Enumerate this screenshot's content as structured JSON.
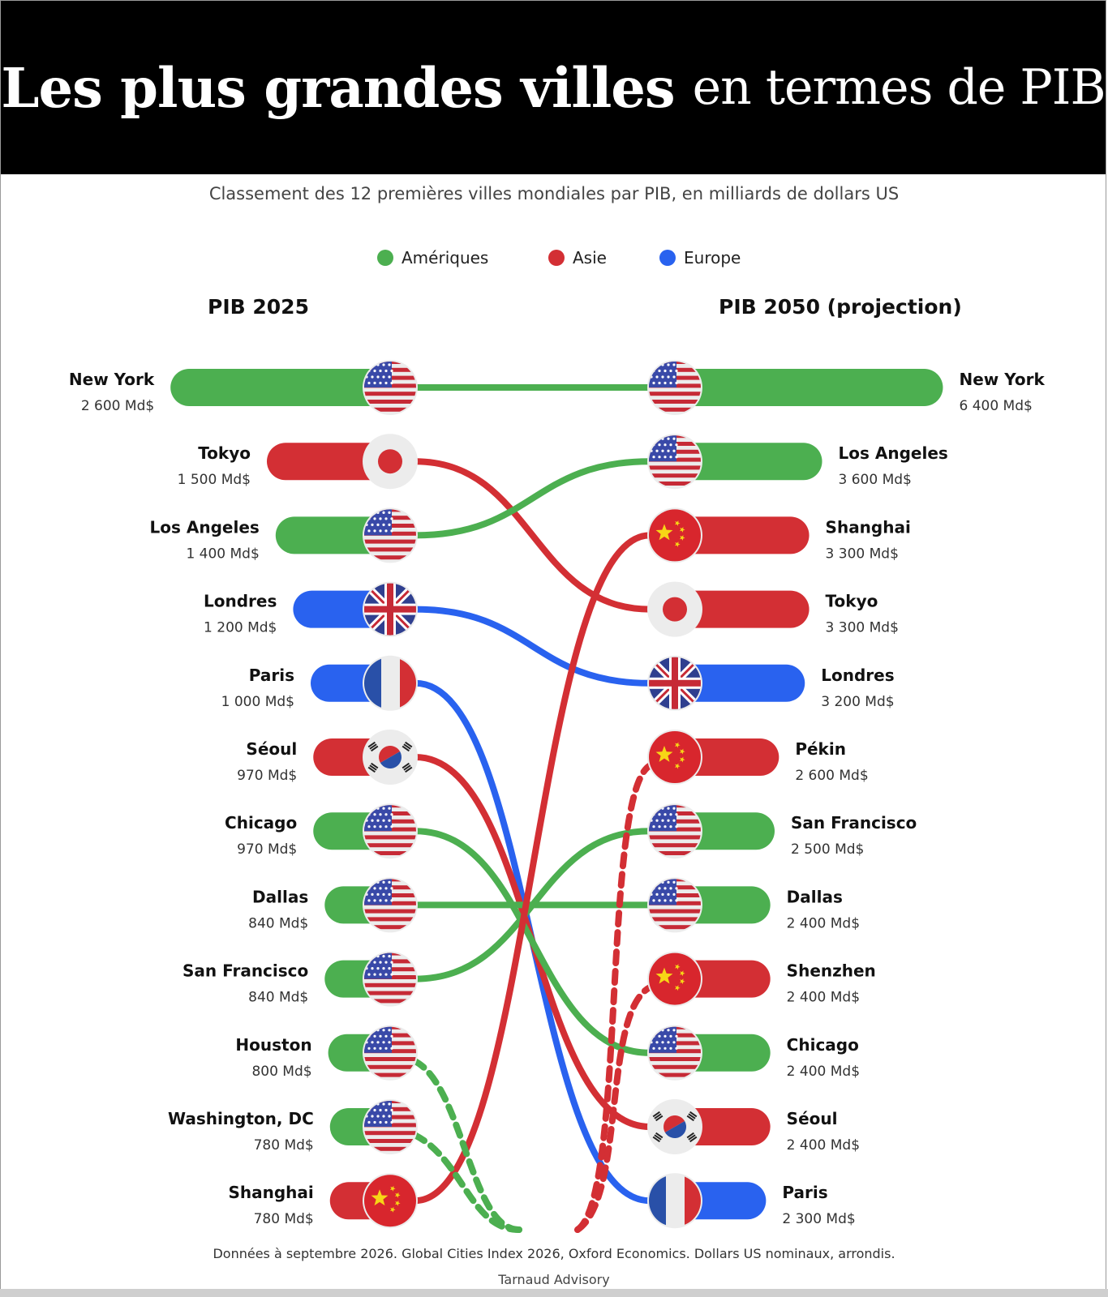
{
  "title": {
    "bold": "Les plus grandes villes",
    "regular": "en termes de PIB"
  },
  "subtitle": "Classement des 12 premières villes mondiales par PIB, en milliards de dollars US",
  "legend": [
    {
      "label": "Amériques",
      "color": "#4caf50"
    },
    {
      "label": "Asie",
      "color": "#d32f34"
    },
    {
      "label": "Europe",
      "color": "#2962ef"
    }
  ],
  "columns": {
    "left": "PIB 2025",
    "right": "PIB 2050 (projection)"
  },
  "footnote": "Données à septembre 2026. Global Cities Index 2026, Oxford Economics. Dollars US nominaux, arrondis.",
  "brand": "Tarnaud Advisory",
  "chart_data": {
    "type": "slope-bar",
    "unit": "Md$",
    "region_colors": {
      "Amériques": "#4caf50",
      "Asie": "#d32f34",
      "Europe": "#2962ef"
    },
    "left_series": "PIB 2025",
    "right_series": "PIB 2050 (projection)",
    "left": [
      {
        "rank": 1,
        "city": "New York",
        "value": 2600,
        "value_label": "2 600 Md$",
        "region": "Amériques",
        "flag": "us-flag"
      },
      {
        "rank": 2,
        "city": "Tokyo",
        "value": 1500,
        "value_label": "1 500 Md$",
        "region": "Asie",
        "flag": "japan-flag"
      },
      {
        "rank": 3,
        "city": "Los Angeles",
        "value": 1400,
        "value_label": "1 400 Md$",
        "region": "Amériques",
        "flag": "us-flag"
      },
      {
        "rank": 4,
        "city": "Londres",
        "value": 1200,
        "value_label": "1 200 Md$",
        "region": "Europe",
        "flag": "uk-flag"
      },
      {
        "rank": 5,
        "city": "Paris",
        "value": 1000,
        "value_label": "1 000 Md$",
        "region": "Europe",
        "flag": "france-flag"
      },
      {
        "rank": 6,
        "city": "Séoul",
        "value": 970,
        "value_label": "970 Md$",
        "region": "Asie",
        "flag": "korea-flag"
      },
      {
        "rank": 7,
        "city": "Chicago",
        "value": 970,
        "value_label": "970 Md$",
        "region": "Amériques",
        "flag": "us-flag"
      },
      {
        "rank": 8,
        "city": "Dallas",
        "value": 840,
        "value_label": "840 Md$",
        "region": "Amériques",
        "flag": "us-flag"
      },
      {
        "rank": 9,
        "city": "San Francisco",
        "value": 840,
        "value_label": "840 Md$",
        "region": "Amériques",
        "flag": "us-flag"
      },
      {
        "rank": 10,
        "city": "Houston",
        "value": 800,
        "value_label": "800 Md$",
        "region": "Amériques",
        "flag": "us-flag"
      },
      {
        "rank": 11,
        "city": "Washington, DC",
        "value": 780,
        "value_label": "780 Md$",
        "region": "Amériques",
        "flag": "us-flag"
      },
      {
        "rank": 12,
        "city": "Shanghai",
        "value": 780,
        "value_label": "780 Md$",
        "region": "Asie",
        "flag": "china-flag"
      }
    ],
    "right": [
      {
        "rank": 1,
        "city": "New York",
        "value": 6400,
        "value_label": "6 400 Md$",
        "region": "Amériques",
        "flag": "us-flag"
      },
      {
        "rank": 2,
        "city": "Los Angeles",
        "value": 3600,
        "value_label": "3 600 Md$",
        "region": "Amériques",
        "flag": "us-flag"
      },
      {
        "rank": 3,
        "city": "Shanghai",
        "value": 3300,
        "value_label": "3 300 Md$",
        "region": "Asie",
        "flag": "china-flag"
      },
      {
        "rank": 4,
        "city": "Tokyo",
        "value": 3300,
        "value_label": "3 300 Md$",
        "region": "Asie",
        "flag": "japan-flag"
      },
      {
        "rank": 5,
        "city": "Londres",
        "value": 3200,
        "value_label": "3 200 Md$",
        "region": "Europe",
        "flag": "uk-flag"
      },
      {
        "rank": 6,
        "city": "Pékin",
        "value": 2600,
        "value_label": "2 600 Md$",
        "region": "Asie",
        "flag": "china-flag"
      },
      {
        "rank": 7,
        "city": "San Francisco",
        "value": 2500,
        "value_label": "2 500 Md$",
        "region": "Amériques",
        "flag": "us-flag"
      },
      {
        "rank": 8,
        "city": "Dallas",
        "value": 2400,
        "value_label": "2 400 Md$",
        "region": "Amériques",
        "flag": "us-flag"
      },
      {
        "rank": 9,
        "city": "Shenzhen",
        "value": 2400,
        "value_label": "2 400 Md$",
        "region": "Asie",
        "flag": "china-flag"
      },
      {
        "rank": 10,
        "city": "Chicago",
        "value": 2400,
        "value_label": "2 400 Md$",
        "region": "Amériques",
        "flag": "us-flag"
      },
      {
        "rank": 11,
        "city": "Séoul",
        "value": 2400,
        "value_label": "2 400 Md$",
        "region": "Asie",
        "flag": "korea-flag"
      },
      {
        "rank": 12,
        "city": "Paris",
        "value": 2300,
        "value_label": "2 300 Md$",
        "region": "Europe",
        "flag": "france-flag"
      }
    ],
    "links": [
      {
        "from": 1,
        "to": 1,
        "region": "Amériques",
        "style": "solid"
      },
      {
        "from": 2,
        "to": 4,
        "region": "Asie",
        "style": "solid"
      },
      {
        "from": 3,
        "to": 2,
        "region": "Amériques",
        "style": "solid"
      },
      {
        "from": 4,
        "to": 5,
        "region": "Europe",
        "style": "solid"
      },
      {
        "from": 5,
        "to": 12,
        "region": "Europe",
        "style": "solid"
      },
      {
        "from": 6,
        "to": 11,
        "region": "Asie",
        "style": "solid"
      },
      {
        "from": 7,
        "to": 10,
        "region": "Amériques",
        "style": "solid"
      },
      {
        "from": 8,
        "to": 8,
        "region": "Amériques",
        "style": "solid"
      },
      {
        "from": 9,
        "to": 7,
        "region": "Amériques",
        "style": "solid"
      },
      {
        "from": 12,
        "to": 3,
        "region": "Asie",
        "style": "solid"
      },
      {
        "from": 10,
        "to": null,
        "region": "Amériques",
        "style": "dashed"
      },
      {
        "from": 11,
        "to": null,
        "region": "Amériques",
        "style": "dashed"
      },
      {
        "from": null,
        "to": 6,
        "region": "Asie",
        "style": "dashed"
      },
      {
        "from": null,
        "to": 9,
        "region": "Asie",
        "style": "dashed"
      }
    ]
  }
}
